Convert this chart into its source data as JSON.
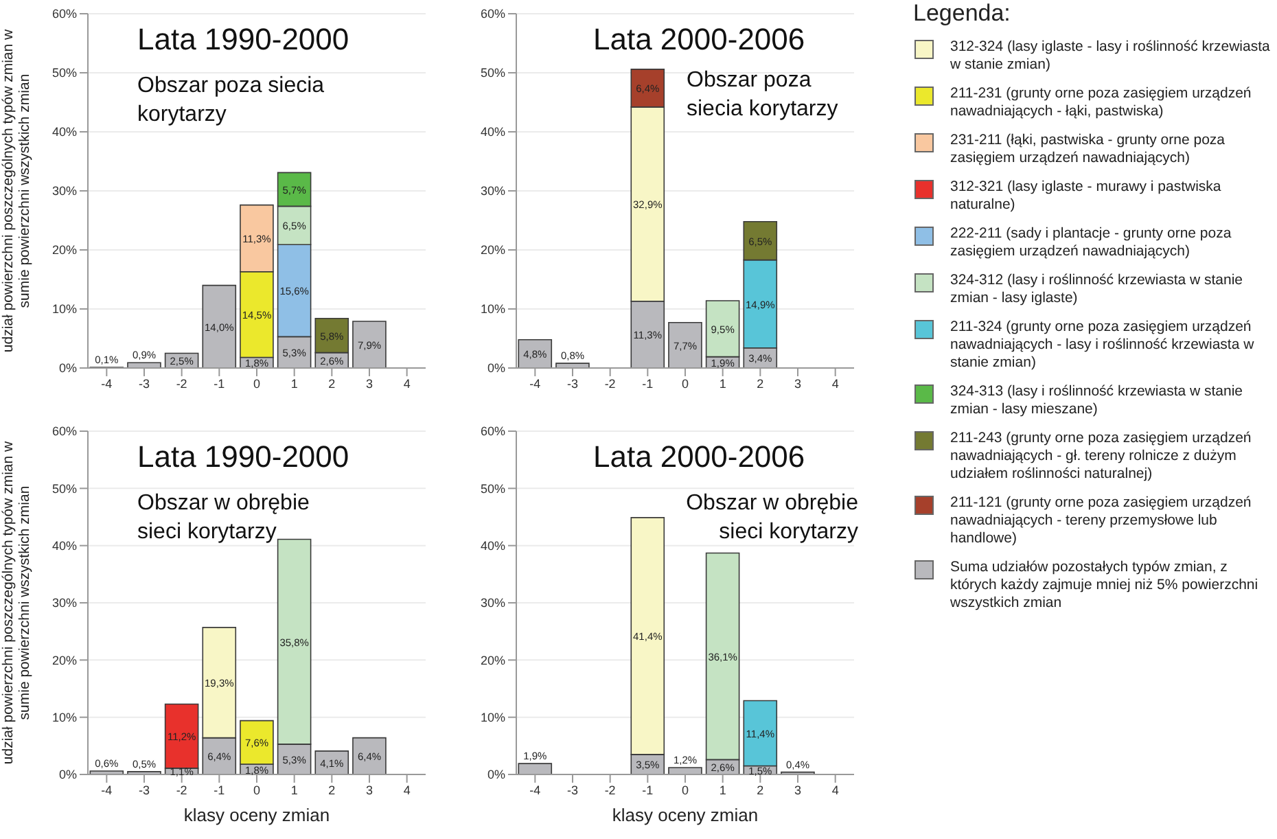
{
  "chart_data": [
    {
      "type": "bar",
      "stacked": true,
      "title": "Lata 1990-2000",
      "subtitle": "Obszar poza siecia korytarzy",
      "ylabel": "udział powierzchni poszczególnych typów zmian w sumie powierzchni wszystkich zmian",
      "categories": [
        "-4",
        "-3",
        "-2",
        "-1",
        "0",
        "1",
        "2",
        "3",
        "4"
      ],
      "ylim": [
        0,
        60
      ],
      "yticks": [
        {
          "value": 0,
          "label": "0%"
        },
        {
          "value": 10,
          "label": "10%"
        },
        {
          "value": 20,
          "label": "20%"
        },
        {
          "value": 30,
          "label": "30%"
        },
        {
          "value": 40,
          "label": "40%"
        },
        {
          "value": 50,
          "label": "50%"
        },
        {
          "value": 60,
          "label": "60%"
        }
      ],
      "grid": "y",
      "legend": "right",
      "legend_title": "Legenda:",
      "series": [
        {
          "name": "Suma udziałów pozostałych typów zmian, z których każdy zajmuje mniej niż 5% powierzchni wszystkich zmian",
          "color": "#b9b9bd",
          "values": [
            0.1,
            0.9,
            2.5,
            14.0,
            1.8,
            5.3,
            2.6,
            7.9,
            null
          ],
          "value_labels": [
            "0,1%",
            "0,9%",
            "2,5%",
            "14,0%",
            "1,8%",
            "5,3%",
            "2,6%",
            "7,9%",
            null
          ]
        },
        {
          "name": "312-324 (lasy iglaste - lasy i roślinność krzewiasta w stanie zmian)",
          "color": "#f8f6c6",
          "values": [
            null,
            null,
            null,
            null,
            null,
            null,
            null,
            null,
            null
          ]
        },
        {
          "name": "211-231 (grunty orne poza zasięgiem urządzeń nawadniających - łąki, pastwiska)",
          "color": "#ebe82c",
          "values": [
            null,
            null,
            null,
            null,
            14.5,
            null,
            null,
            null,
            null
          ],
          "value_labels": [
            null,
            null,
            null,
            null,
            "14,5%",
            null,
            null,
            null,
            null
          ]
        },
        {
          "name": "231-211 (łąki, pastwiska - grunty orne poza zasięgiem urządzeń nawadniających)",
          "color": "#f9c8a0",
          "values": [
            null,
            null,
            null,
            null,
            11.3,
            null,
            null,
            null,
            null
          ],
          "value_labels": [
            null,
            null,
            null,
            null,
            "11,3%",
            null,
            null,
            null,
            null
          ]
        },
        {
          "name": "312-321 (lasy iglaste - murawy i pastwiska naturalne)",
          "color": "#e8312c",
          "values": [
            null,
            null,
            null,
            null,
            null,
            null,
            null,
            null,
            null
          ]
        },
        {
          "name": "222-211 (sady i plantacje - grunty orne poza zasięgiem urządzeń nawadniających)",
          "color": "#8fbfe6",
          "values": [
            null,
            null,
            null,
            null,
            null,
            15.6,
            null,
            null,
            null
          ],
          "value_labels": [
            null,
            null,
            null,
            null,
            null,
            "15,6%",
            null,
            null,
            null
          ]
        },
        {
          "name": "324-312 (lasy i roślinność krzewiasta w stanie zmian - lasy iglaste)",
          "color": "#c5e3c3",
          "values": [
            null,
            null,
            null,
            null,
            null,
            6.5,
            null,
            null,
            null
          ],
          "value_labels": [
            null,
            null,
            null,
            null,
            null,
            "6,5%",
            null,
            null,
            null
          ]
        },
        {
          "name": "211-324 (grunty orne poza zasięgiem urządzeń nawadniających - lasy i roślinność krzewiasta w stanie zmian)",
          "color": "#58c5d8",
          "values": [
            null,
            null,
            null,
            null,
            null,
            null,
            null,
            null,
            null
          ]
        },
        {
          "name": "324-313 (lasy i roślinność krzewiasta w stanie zmian - lasy mieszane)",
          "color": "#5ab948",
          "values": [
            null,
            null,
            null,
            null,
            null,
            5.7,
            null,
            null,
            null
          ],
          "value_labels": [
            null,
            null,
            null,
            null,
            null,
            "5,7%",
            null,
            null,
            null
          ]
        },
        {
          "name": "211-243 (grunty orne poza zasięgiem urządzeń nawadniających - gł. tereny rolnicze z dużym udziałem roślinności naturalnej)",
          "color": "#747a32",
          "values": [
            null,
            null,
            null,
            null,
            null,
            null,
            5.8,
            null,
            null
          ],
          "value_labels": [
            null,
            null,
            null,
            null,
            null,
            null,
            "5,8%",
            null,
            null
          ]
        },
        {
          "name": "211-121 (grunty orne poza zasięgiem urządzeń nawadniających - tereny przemysłowe lub handlowe)",
          "color": "#a6402b",
          "values": [
            null,
            null,
            null,
            null,
            null,
            null,
            null,
            null,
            null
          ]
        }
      ]
    },
    {
      "type": "bar",
      "stacked": true,
      "title": "Lata 2000-2006",
      "subtitle": "Obszar poza siecia korytarzy",
      "categories": [
        "-4",
        "-3",
        "-2",
        "-1",
        "0",
        "1",
        "2",
        "3",
        "4"
      ],
      "ylim": [
        0,
        60
      ],
      "yticks": [
        {
          "value": 0,
          "label": "0%"
        },
        {
          "value": 10,
          "label": "10%"
        },
        {
          "value": 20,
          "label": "20%"
        },
        {
          "value": 30,
          "label": "30%"
        },
        {
          "value": 40,
          "label": "40%"
        },
        {
          "value": 50,
          "label": "50%"
        },
        {
          "value": 60,
          "label": "60%"
        }
      ],
      "grid": "y",
      "series": [
        {
          "color": "#b9b9bd",
          "values": [
            4.8,
            0.8,
            null,
            11.3,
            7.7,
            1.9,
            3.4,
            null,
            null
          ],
          "value_labels": [
            "4,8%",
            "0,8%",
            null,
            "11,3%",
            "7,7%",
            "1,9%",
            "3,4%",
            null,
            null
          ]
        },
        {
          "color": "#f8f6c6",
          "values": [
            null,
            null,
            null,
            32.9,
            null,
            null,
            null,
            null,
            null
          ],
          "value_labels": [
            null,
            null,
            null,
            "32,9%",
            null,
            null,
            null,
            null,
            null
          ]
        },
        {
          "color": "#c5e3c3",
          "values": [
            null,
            null,
            null,
            null,
            null,
            9.5,
            null,
            null,
            null
          ],
          "value_labels": [
            null,
            null,
            null,
            null,
            null,
            "9,5%",
            null,
            null,
            null
          ]
        },
        {
          "color": "#58c5d8",
          "values": [
            null,
            null,
            null,
            null,
            null,
            null,
            14.9,
            null,
            null
          ],
          "value_labels": [
            null,
            null,
            null,
            null,
            null,
            null,
            "14,9%",
            null,
            null
          ]
        },
        {
          "color": "#747a32",
          "values": [
            null,
            null,
            null,
            null,
            null,
            null,
            6.5,
            null,
            null
          ],
          "value_labels": [
            null,
            null,
            null,
            null,
            null,
            null,
            "6,5%",
            null,
            null
          ]
        },
        {
          "color": "#a6402b",
          "values": [
            null,
            null,
            null,
            6.4,
            null,
            null,
            null,
            null,
            null
          ],
          "value_labels": [
            null,
            null,
            null,
            "6,4%",
            null,
            null,
            null,
            null,
            null
          ]
        }
      ]
    },
    {
      "type": "bar",
      "stacked": true,
      "title": "Lata 1990-2000",
      "subtitle": "Obszar w obrębie sieci korytarzy",
      "xlabel": "klasy oceny zmian",
      "ylabel": "udział powierzchni poszczególnych typów zmian w sumie powierzchni wszystkich zmian",
      "categories": [
        "-4",
        "-3",
        "-2",
        "-1",
        "0",
        "1",
        "2",
        "3",
        "4"
      ],
      "ylim": [
        0,
        60
      ],
      "yticks": [
        {
          "value": 0,
          "label": "0%"
        },
        {
          "value": 10,
          "label": "10%"
        },
        {
          "value": 20,
          "label": "20%"
        },
        {
          "value": 30,
          "label": "30%"
        },
        {
          "value": 40,
          "label": "40%"
        },
        {
          "value": 50,
          "label": "50%"
        },
        {
          "value": 60,
          "label": "60%"
        }
      ],
      "grid": "y",
      "series": [
        {
          "color": "#b9b9bd",
          "values": [
            0.6,
            0.5,
            1.1,
            6.4,
            1.8,
            5.3,
            4.1,
            6.4,
            null
          ],
          "value_labels": [
            "0,6%",
            "0,5%",
            "1,1%",
            "6,4%",
            "1,8%",
            "5,3%",
            "4,1%",
            "6,4%",
            null
          ]
        },
        {
          "color": "#f8f6c6",
          "values": [
            null,
            null,
            null,
            19.3,
            null,
            null,
            null,
            null,
            null
          ],
          "value_labels": [
            null,
            null,
            null,
            "19,3%",
            null,
            null,
            null,
            null,
            null
          ]
        },
        {
          "color": "#ebe82c",
          "values": [
            null,
            null,
            null,
            null,
            7.6,
            null,
            null,
            null,
            null
          ],
          "value_labels": [
            null,
            null,
            null,
            null,
            "7,6%",
            null,
            null,
            null,
            null
          ]
        },
        {
          "color": "#e8312c",
          "values": [
            null,
            null,
            11.2,
            null,
            null,
            null,
            null,
            null,
            null
          ],
          "value_labels": [
            null,
            null,
            "11,2%",
            null,
            null,
            null,
            null,
            null,
            null
          ]
        },
        {
          "color": "#c5e3c3",
          "values": [
            null,
            null,
            null,
            null,
            null,
            35.8,
            null,
            null,
            null
          ],
          "value_labels": [
            null,
            null,
            null,
            null,
            null,
            "35,8%",
            null,
            null,
            null
          ]
        }
      ]
    },
    {
      "type": "bar",
      "stacked": true,
      "title": "Lata 2000-2006",
      "subtitle": "Obszar w obrębie sieci korytarzy",
      "xlabel": "klasy oceny zmian",
      "categories": [
        "-4",
        "-3",
        "-2",
        "-1",
        "0",
        "1",
        "2",
        "3",
        "4"
      ],
      "ylim": [
        0,
        60
      ],
      "yticks": [
        {
          "value": 0,
          "label": "0%"
        },
        {
          "value": 10,
          "label": "10%"
        },
        {
          "value": 20,
          "label": "20%"
        },
        {
          "value": 30,
          "label": "30%"
        },
        {
          "value": 40,
          "label": "40%"
        },
        {
          "value": 50,
          "label": "50%"
        },
        {
          "value": 60,
          "label": "60%"
        }
      ],
      "grid": "y",
      "series": [
        {
          "color": "#b9b9bd",
          "values": [
            1.9,
            null,
            null,
            3.5,
            1.2,
            2.6,
            1.5,
            0.4,
            null
          ],
          "value_labels": [
            "1,9%",
            null,
            null,
            "3,5%",
            "1,2%",
            "2,6%",
            "1,5%",
            "0,4%",
            null
          ]
        },
        {
          "color": "#f8f6c6",
          "values": [
            null,
            null,
            null,
            41.4,
            null,
            null,
            null,
            null,
            null
          ],
          "value_labels": [
            null,
            null,
            null,
            "41,4%",
            null,
            null,
            null,
            null,
            null
          ]
        },
        {
          "color": "#c5e3c3",
          "values": [
            null,
            null,
            null,
            null,
            null,
            36.1,
            null,
            null,
            null
          ],
          "value_labels": [
            null,
            null,
            null,
            null,
            null,
            "36,1%",
            null,
            null,
            null
          ]
        },
        {
          "color": "#58c5d8",
          "values": [
            null,
            null,
            null,
            null,
            null,
            null,
            11.4,
            null,
            null
          ],
          "value_labels": [
            null,
            null,
            null,
            null,
            null,
            null,
            "11,4%",
            null,
            null
          ]
        }
      ]
    }
  ]
}
